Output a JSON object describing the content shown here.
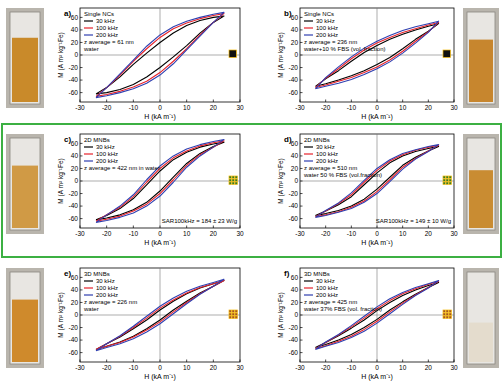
{
  "chart_data": [
    {
      "type": "line",
      "title": "a)",
      "annotations": [
        "Single NCs",
        "z average = 61 nm",
        "water"
      ],
      "x_label": "H (kA m⁻¹)",
      "y_label": "M (A m² kg⁻¹Fe)",
      "xlim": [
        -30,
        30
      ],
      "ylim": [
        -75,
        75
      ],
      "xticks": [
        -30,
        -20,
        -10,
        0,
        10,
        20,
        30
      ],
      "yticks": [
        -60,
        -40,
        -20,
        0,
        20,
        40,
        60
      ],
      "x": [
        -24,
        -20,
        -15,
        -10,
        -5,
        0,
        5,
        10,
        15,
        20,
        24,
        20,
        15,
        10,
        5,
        0,
        -5,
        -10,
        -15,
        -20,
        -24
      ],
      "series": [
        {
          "name": "30 kHz",
          "color": "#000000",
          "values": [
            -62,
            -60,
            -55,
            -47,
            -35,
            -20,
            -3,
            15,
            35,
            52,
            62,
            60,
            55,
            47,
            35,
            20,
            3,
            -15,
            -35,
            -52,
            -62
          ]
        },
        {
          "name": "100 kHz",
          "color": "#e8222a",
          "values": [
            -66,
            -63,
            -58,
            -51,
            -42,
            -28,
            -10,
            10,
            32,
            52,
            66,
            63,
            58,
            51,
            42,
            28,
            10,
            -10,
            -32,
            -52,
            -66
          ]
        },
        {
          "name": "200 kHz",
          "color": "#2f3fb0",
          "values": [
            -68,
            -65,
            -60,
            -54,
            -45,
            -32,
            -14,
            8,
            30,
            52,
            68,
            65,
            60,
            54,
            45,
            32,
            14,
            -8,
            -30,
            -52,
            -68
          ]
        }
      ]
    },
    {
      "type": "line",
      "title": "b)",
      "annotations": [
        "Single NCs",
        "z average = 236 nm",
        "water+10 % FBS (vol. fraction)"
      ],
      "x_label": "H (kA m⁻¹)",
      "y_label": "M (A m² kg⁻¹Fe)",
      "xlim": [
        -30,
        30
      ],
      "ylim": [
        -75,
        75
      ],
      "xticks": [
        -30,
        -20,
        -10,
        0,
        10,
        20,
        30
      ],
      "yticks": [
        -60,
        -40,
        -20,
        0,
        20,
        40,
        60
      ],
      "x": [
        -24,
        -20,
        -15,
        -10,
        -5,
        0,
        5,
        10,
        15,
        20,
        24,
        20,
        15,
        10,
        5,
        0,
        -5,
        -10,
        -15,
        -20,
        -24
      ],
      "series": [
        {
          "name": "30 kHz",
          "color": "#000000",
          "values": [
            -50,
            -46,
            -40,
            -33,
            -25,
            -15,
            -4,
            10,
            25,
            38,
            50,
            46,
            40,
            33,
            25,
            15,
            4,
            -10,
            -25,
            -38,
            -50
          ]
        },
        {
          "name": "100 kHz",
          "color": "#e8222a",
          "values": [
            -52,
            -48,
            -42,
            -36,
            -28,
            -19,
            -8,
            6,
            22,
            37,
            52,
            48,
            42,
            36,
            28,
            19,
            8,
            -6,
            -22,
            -37,
            -52
          ]
        },
        {
          "name": "200 kHz",
          "color": "#2f3fb0",
          "values": [
            -54,
            -50,
            -45,
            -39,
            -31,
            -22,
            -11,
            3,
            19,
            36,
            54,
            50,
            45,
            39,
            31,
            22,
            11,
            -3,
            -19,
            -36,
            -54
          ]
        }
      ]
    },
    {
      "type": "line",
      "title": "c)",
      "annotations": [
        "2D MNBs",
        "z average = 422 nm in water"
      ],
      "subtitle": "SAR100kHz = 184 ± 23 W/g",
      "x_label": "H (kA m⁻¹)",
      "y_label": "M (A m² kg⁻¹Fe)",
      "xlim": [
        -30,
        30
      ],
      "ylim": [
        -75,
        75
      ],
      "xticks": [
        -30,
        -20,
        -10,
        0,
        10,
        20,
        30
      ],
      "yticks": [
        -60,
        -40,
        -20,
        0,
        20,
        40,
        60
      ],
      "x": [
        -24,
        -20,
        -15,
        -10,
        -5,
        0,
        5,
        10,
        15,
        20,
        24,
        20,
        15,
        10,
        5,
        0,
        -5,
        -10,
        -15,
        -20,
        -24
      ],
      "series": [
        {
          "name": "30 kHz",
          "color": "#000000",
          "values": [
            -62,
            -59,
            -54,
            -46,
            -34,
            -16,
            6,
            28,
            44,
            55,
            62,
            59,
            54,
            46,
            34,
            16,
            -6,
            -28,
            -44,
            -55,
            -62
          ]
        },
        {
          "name": "100 kHz",
          "color": "#e8222a",
          "values": [
            -64,
            -61,
            -56,
            -48,
            -37,
            -20,
            2,
            25,
            42,
            54,
            64,
            61,
            56,
            48,
            37,
            20,
            -2,
            -25,
            -42,
            -54,
            -64
          ]
        },
        {
          "name": "200 kHz",
          "color": "#2f3fb0",
          "values": [
            -66,
            -63,
            -58,
            -51,
            -40,
            -24,
            -2,
            22,
            40,
            54,
            66,
            63,
            58,
            51,
            40,
            24,
            2,
            -22,
            -40,
            -54,
            -66
          ]
        }
      ]
    },
    {
      "type": "line",
      "title": "d)",
      "annotations": [
        "2D MNBs",
        "z average = 510 nm",
        "water 50 % FBS (vol.fraction)"
      ],
      "subtitle": "SAR100kHz = 149 ± 10 W/g",
      "x_label": "H (kA m⁻¹)",
      "y_label": "M (A m² kg⁻¹Fe)",
      "xlim": [
        -30,
        30
      ],
      "ylim": [
        -75,
        75
      ],
      "xticks": [
        -30,
        -20,
        -10,
        0,
        10,
        20,
        30
      ],
      "yticks": [
        -60,
        -40,
        -20,
        0,
        20,
        40,
        60
      ],
      "x": [
        -24,
        -20,
        -15,
        -10,
        -5,
        0,
        5,
        10,
        15,
        20,
        24,
        20,
        15,
        10,
        5,
        0,
        -5,
        -10,
        -15,
        -20,
        -24
      ],
      "series": [
        {
          "name": "30 kHz",
          "color": "#000000",
          "values": [
            -55,
            -52,
            -47,
            -40,
            -29,
            -13,
            6,
            25,
            38,
            48,
            55,
            52,
            47,
            40,
            29,
            13,
            -6,
            -25,
            -38,
            -48,
            -55
          ]
        },
        {
          "name": "100 kHz",
          "color": "#e8222a",
          "values": [
            -57,
            -54,
            -49,
            -42,
            -32,
            -17,
            2,
            22,
            36,
            48,
            57,
            54,
            49,
            42,
            32,
            17,
            -2,
            -22,
            -36,
            -48,
            -57
          ]
        },
        {
          "name": "200 kHz",
          "color": "#2f3fb0",
          "values": [
            -58,
            -55,
            -50,
            -44,
            -34,
            -20,
            -1,
            19,
            35,
            47,
            58,
            55,
            50,
            44,
            34,
            20,
            1,
            -19,
            -35,
            -47,
            -58
          ]
        }
      ]
    },
    {
      "type": "line",
      "title": "e)",
      "annotations": [
        "3D MNBs",
        "z average = 226 nm",
        "water"
      ],
      "x_label": "H (kA m⁻¹)",
      "y_label": "M (A m² kg⁻¹Fe)",
      "xlim": [
        -30,
        30
      ],
      "ylim": [
        -75,
        75
      ],
      "xticks": [
        -30,
        -20,
        -10,
        0,
        10,
        20,
        30
      ],
      "yticks": [
        -60,
        -40,
        -20,
        0,
        20,
        40,
        60
      ],
      "x": [
        -24,
        -20,
        -15,
        -10,
        -5,
        0,
        5,
        10,
        15,
        20,
        24,
        20,
        15,
        10,
        5,
        0,
        -5,
        -10,
        -15,
        -20,
        -24
      ],
      "series": [
        {
          "name": "30 kHz",
          "color": "#000000",
          "values": [
            -55,
            -50,
            -43,
            -34,
            -22,
            -8,
            8,
            22,
            35,
            46,
            55,
            50,
            43,
            34,
            22,
            8,
            -8,
            -22,
            -35,
            -46,
            -55
          ]
        },
        {
          "name": "100 kHz",
          "color": "#e8222a",
          "values": [
            -55,
            -50,
            -44,
            -35,
            -24,
            -11,
            5,
            20,
            34,
            46,
            55,
            50,
            44,
            35,
            24,
            11,
            -5,
            -20,
            -34,
            -46,
            -55
          ]
        },
        {
          "name": "200 kHz",
          "color": "#2f3fb0",
          "values": [
            -57,
            -52,
            -46,
            -38,
            -27,
            -14,
            2,
            18,
            33,
            46,
            57,
            52,
            46,
            38,
            27,
            14,
            -2,
            -18,
            -33,
            -46,
            -57
          ]
        }
      ]
    },
    {
      "type": "line",
      "title": "f)",
      "annotations": [
        "3D MNBs",
        "z average = 425 nm",
        "water 37% FBS (vol. fraction)"
      ],
      "x_label": "H (kA m⁻¹)",
      "y_label": "M (A m² kg⁻¹Fe)",
      "xlim": [
        -30,
        30
      ],
      "ylim": [
        -75,
        75
      ],
      "xticks": [
        -30,
        -20,
        -10,
        0,
        10,
        20,
        30
      ],
      "yticks": [
        -60,
        -40,
        -20,
        0,
        20,
        40,
        60
      ],
      "x": [
        -24,
        -20,
        -15,
        -10,
        -5,
        0,
        5,
        10,
        15,
        20,
        24,
        20,
        15,
        10,
        5,
        0,
        -5,
        -10,
        -15,
        -20,
        -24
      ],
      "series": [
        {
          "name": "30 kHz",
          "color": "#000000",
          "values": [
            -52,
            -47,
            -40,
            -31,
            -20,
            -7,
            8,
            21,
            33,
            44,
            52,
            47,
            40,
            31,
            20,
            7,
            -8,
            -21,
            -33,
            -44,
            -52
          ]
        },
        {
          "name": "100 kHz",
          "color": "#e8222a",
          "values": [
            -54,
            -49,
            -42,
            -34,
            -23,
            -10,
            5,
            19,
            32,
            44,
            54,
            49,
            42,
            34,
            23,
            10,
            -5,
            -19,
            -32,
            -44,
            -54
          ]
        },
        {
          "name": "200 kHz",
          "color": "#2f3fb0",
          "values": [
            -55,
            -50,
            -44,
            -36,
            -26,
            -13,
            2,
            17,
            31,
            43,
            55,
            50,
            44,
            36,
            26,
            13,
            -2,
            -17,
            -31,
            -43,
            -55
          ]
        }
      ]
    }
  ]
}
